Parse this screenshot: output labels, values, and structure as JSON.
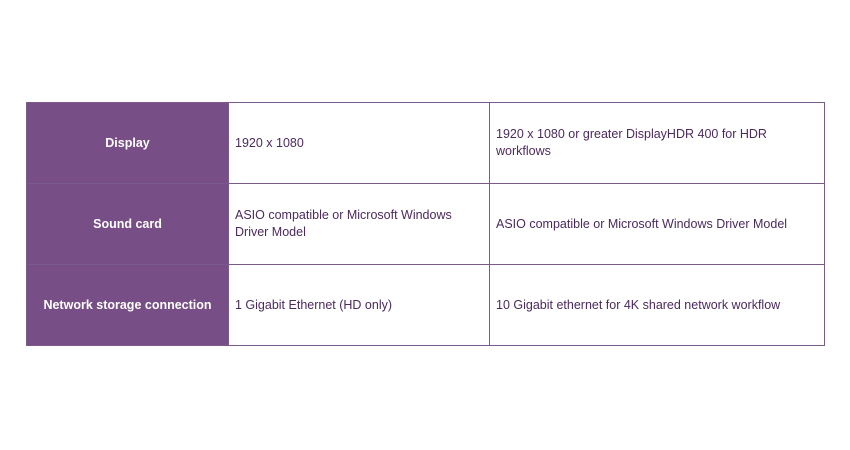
{
  "table": {
    "rows": [
      {
        "label": "Display",
        "minimum": "1920 x 1080",
        "recommended": "1920 x 1080 or greater DisplayHDR 400 for HDR workflows"
      },
      {
        "label": "Sound card",
        "minimum": "ASIO compatible or Microsoft Windows Driver Model",
        "recommended": "ASIO compatible or Microsoft Windows Driver Model"
      },
      {
        "label": "Network storage connection",
        "minimum": "1 Gigabit Ethernet (HD only)",
        "recommended": "10 Gigabit ethernet for 4K shared network workflow"
      }
    ]
  },
  "colors": {
    "header_bg": "#774f86",
    "text": "#4b2a5e",
    "border": "#7a5a8a"
  }
}
